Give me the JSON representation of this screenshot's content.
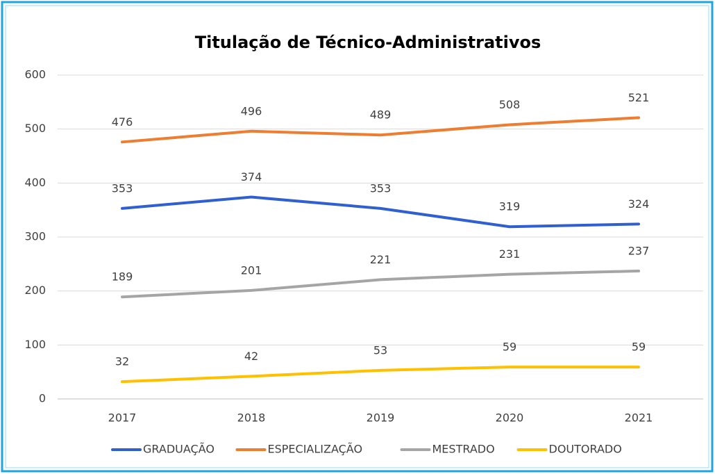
{
  "chart_data": {
    "type": "line",
    "title": "Titulação de Técnico-Administrativos",
    "categories": [
      "2017",
      "2018",
      "2019",
      "2020",
      "2021"
    ],
    "series": [
      {
        "name": "GRADUAÇÃO",
        "color": "#2f5fd1",
        "values": [
          353,
          374,
          353,
          319,
          324
        ]
      },
      {
        "name": "ESPECIALIZAÇÃO",
        "color": "#ed7d31",
        "values": [
          476,
          496,
          489,
          508,
          521
        ]
      },
      {
        "name": "MESTRADO",
        "color": "#a5a5a5",
        "values": [
          189,
          201,
          221,
          231,
          237
        ]
      },
      {
        "name": "DOUTORADO",
        "color": "#ffc000",
        "values": [
          32,
          42,
          53,
          59,
          59
        ]
      }
    ],
    "ylim": [
      0,
      600
    ],
    "yticks": [
      0,
      100,
      200,
      300,
      400,
      500,
      600
    ],
    "grid": true,
    "legend": "bottom"
  }
}
